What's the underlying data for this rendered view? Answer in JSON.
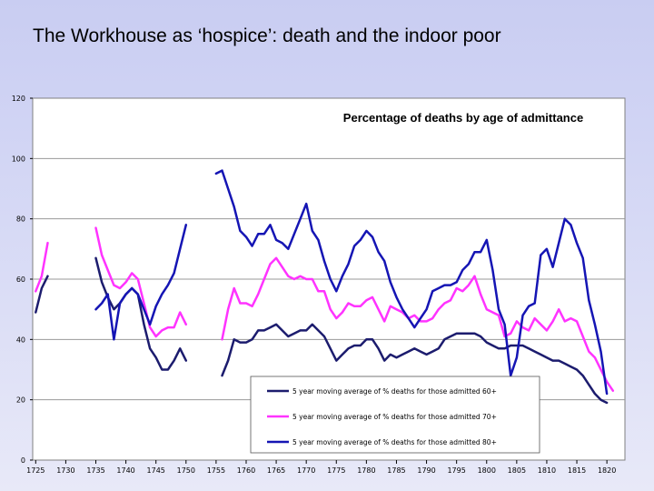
{
  "slide": {
    "title": "The Workhouse as ‘hospice’: death and the indoor poor"
  },
  "colors": {
    "series_60": "#1c1c6e",
    "series_70": "#ff33ff",
    "series_80": "#1515b4",
    "grid": "#9a9a9a",
    "plot_bg": "#ffffff"
  },
  "chart_data": {
    "type": "line",
    "title": "Percentage of deaths by age of admittance",
    "xlabel": "",
    "ylabel": "",
    "xlim": [
      1724.5,
      1823
    ],
    "ylim": [
      0,
      120
    ],
    "yticks": [
      "0",
      "20",
      "40",
      "60",
      "80",
      "100",
      "120"
    ],
    "xticks": [
      "1725",
      "1730",
      "1735",
      "1740",
      "1745",
      "1750",
      "1755",
      "1760",
      "1765",
      "1770",
      "1775",
      "1780",
      "1785",
      "1790",
      "1795",
      "1800",
      "1805",
      "1810",
      "1815",
      "1820"
    ],
    "grid": "horizontal",
    "legend_position": "bottom-right",
    "series": [
      {
        "name": "5 year moving average of % deaths for those admitted 60+",
        "segments": [
          [
            [
              1725,
              49
            ],
            [
              1726,
              57
            ],
            [
              1727,
              61
            ]
          ],
          [
            [
              1735,
              67
            ],
            [
              1736,
              59
            ],
            [
              1737,
              54
            ],
            [
              1738,
              50
            ],
            [
              1739,
              52
            ],
            [
              1740,
              55
            ],
            [
              1741,
              57
            ],
            [
              1742,
              55
            ],
            [
              1743,
              45
            ],
            [
              1744,
              37
            ],
            [
              1745,
              34
            ],
            [
              1746,
              30
            ],
            [
              1747,
              30
            ],
            [
              1748,
              33
            ],
            [
              1749,
              37
            ],
            [
              1750,
              33
            ]
          ],
          [
            [
              1756,
              28
            ],
            [
              1757,
              33
            ],
            [
              1758,
              40
            ],
            [
              1759,
              39
            ],
            [
              1760,
              39
            ],
            [
              1761,
              40
            ],
            [
              1762,
              43
            ],
            [
              1763,
              43
            ],
            [
              1764,
              44
            ],
            [
              1765,
              45
            ],
            [
              1766,
              43
            ],
            [
              1767,
              41
            ],
            [
              1768,
              42
            ],
            [
              1769,
              43
            ],
            [
              1770,
              43
            ],
            [
              1771,
              45
            ],
            [
              1772,
              43
            ],
            [
              1773,
              41
            ],
            [
              1774,
              37
            ],
            [
              1775,
              33
            ],
            [
              1776,
              35
            ],
            [
              1777,
              37
            ],
            [
              1778,
              38
            ],
            [
              1779,
              38
            ],
            [
              1780,
              40
            ],
            [
              1781,
              40
            ],
            [
              1782,
              37
            ],
            [
              1783,
              33
            ],
            [
              1784,
              35
            ],
            [
              1785,
              34
            ],
            [
              1786,
              35
            ],
            [
              1787,
              36
            ],
            [
              1788,
              37
            ],
            [
              1789,
              36
            ],
            [
              1790,
              35
            ],
            [
              1791,
              36
            ],
            [
              1792,
              37
            ],
            [
              1793,
              40
            ],
            [
              1794,
              41
            ],
            [
              1795,
              42
            ],
            [
              1796,
              42
            ],
            [
              1797,
              42
            ],
            [
              1798,
              42
            ],
            [
              1799,
              41
            ],
            [
              1800,
              39
            ],
            [
              1801,
              38
            ],
            [
              1802,
              37
            ],
            [
              1803,
              37
            ],
            [
              1804,
              38
            ],
            [
              1805,
              38
            ],
            [
              1806,
              38
            ],
            [
              1807,
              37
            ],
            [
              1808,
              36
            ],
            [
              1809,
              35
            ],
            [
              1810,
              34
            ],
            [
              1811,
              33
            ],
            [
              1812,
              33
            ],
            [
              1813,
              32
            ],
            [
              1814,
              31
            ],
            [
              1815,
              30
            ],
            [
              1816,
              28
            ],
            [
              1817,
              25
            ],
            [
              1818,
              22
            ],
            [
              1819,
              20
            ],
            [
              1820,
              19
            ]
          ]
        ]
      },
      {
        "name": "5 year moving average of % deaths for those admitted 70+",
        "segments": [
          [
            [
              1725,
              56
            ],
            [
              1726,
              61
            ],
            [
              1727,
              72
            ]
          ],
          [
            [
              1735,
              77
            ],
            [
              1736,
              68
            ],
            [
              1737,
              63
            ],
            [
              1738,
              58
            ],
            [
              1739,
              57
            ],
            [
              1740,
              59
            ],
            [
              1741,
              62
            ],
            [
              1742,
              60
            ],
            [
              1743,
              52
            ],
            [
              1744,
              44
            ],
            [
              1745,
              41
            ],
            [
              1746,
              43
            ],
            [
              1747,
              44
            ],
            [
              1748,
              44
            ],
            [
              1749,
              49
            ],
            [
              1750,
              45
            ]
          ],
          [
            [
              1756,
              40
            ],
            [
              1757,
              50
            ],
            [
              1758,
              57
            ],
            [
              1759,
              52
            ],
            [
              1760,
              52
            ],
            [
              1761,
              51
            ],
            [
              1762,
              55
            ],
            [
              1763,
              60
            ],
            [
              1764,
              65
            ],
            [
              1765,
              67
            ],
            [
              1766,
              64
            ],
            [
              1767,
              61
            ],
            [
              1768,
              60
            ],
            [
              1769,
              61
            ],
            [
              1770,
              60
            ],
            [
              1771,
              60
            ],
            [
              1772,
              56
            ],
            [
              1773,
              56
            ],
            [
              1774,
              50
            ],
            [
              1775,
              47
            ],
            [
              1776,
              49
            ],
            [
              1777,
              52
            ],
            [
              1778,
              51
            ],
            [
              1779,
              51
            ],
            [
              1780,
              53
            ],
            [
              1781,
              54
            ],
            [
              1782,
              50
            ],
            [
              1783,
              46
            ],
            [
              1784,
              51
            ],
            [
              1785,
              50
            ],
            [
              1786,
              49
            ],
            [
              1787,
              47
            ],
            [
              1788,
              48
            ],
            [
              1789,
              46
            ],
            [
              1790,
              46
            ],
            [
              1791,
              47
            ],
            [
              1792,
              50
            ],
            [
              1793,
              52
            ],
            [
              1794,
              53
            ],
            [
              1795,
              57
            ],
            [
              1796,
              56
            ],
            [
              1797,
              58
            ],
            [
              1798,
              61
            ],
            [
              1799,
              55
            ],
            [
              1800,
              50
            ],
            [
              1801,
              49
            ],
            [
              1802,
              48
            ],
            [
              1803,
              41
            ],
            [
              1804,
              42
            ],
            [
              1805,
              46
            ],
            [
              1806,
              44
            ],
            [
              1807,
              43
            ],
            [
              1808,
              47
            ],
            [
              1809,
              45
            ],
            [
              1810,
              43
            ],
            [
              1811,
              46
            ],
            [
              1812,
              50
            ],
            [
              1813,
              46
            ],
            [
              1814,
              47
            ],
            [
              1815,
              46
            ],
            [
              1816,
              41
            ],
            [
              1817,
              36
            ],
            [
              1818,
              34
            ],
            [
              1819,
              30
            ],
            [
              1820,
              26
            ],
            [
              1821,
              23
            ]
          ]
        ]
      },
      {
        "name": "5 year moving average of % deaths for those admitted 80+",
        "segments": [
          [
            [
              1735,
              50
            ],
            [
              1736,
              52
            ],
            [
              1737,
              55
            ],
            [
              1738,
              40
            ],
            [
              1739,
              52
            ],
            [
              1740,
              55
            ],
            [
              1741,
              57
            ],
            [
              1742,
              55
            ],
            [
              1743,
              50
            ],
            [
              1744,
              45
            ],
            [
              1745,
              51
            ],
            [
              1746,
              55
            ],
            [
              1747,
              58
            ],
            [
              1748,
              62
            ],
            [
              1749,
              70
            ],
            [
              1750,
              78
            ]
          ],
          [
            [
              1755,
              95
            ],
            [
              1756,
              96
            ],
            [
              1757,
              90
            ],
            [
              1758,
              84
            ],
            [
              1759,
              76
            ],
            [
              1760,
              74
            ],
            [
              1761,
              71
            ],
            [
              1762,
              75
            ],
            [
              1763,
              75
            ],
            [
              1764,
              78
            ],
            [
              1765,
              73
            ],
            [
              1766,
              72
            ],
            [
              1767,
              70
            ],
            [
              1768,
              75
            ],
            [
              1769,
              80
            ],
            [
              1770,
              85
            ],
            [
              1771,
              76
            ],
            [
              1772,
              73
            ],
            [
              1773,
              66
            ],
            [
              1774,
              60
            ],
            [
              1775,
              56
            ],
            [
              1776,
              61
            ],
            [
              1777,
              65
            ],
            [
              1778,
              71
            ],
            [
              1779,
              73
            ],
            [
              1780,
              76
            ],
            [
              1781,
              74
            ],
            [
              1782,
              69
            ],
            [
              1783,
              66
            ],
            [
              1784,
              59
            ],
            [
              1785,
              54
            ],
            [
              1786,
              50
            ],
            [
              1787,
              47
            ],
            [
              1788,
              44
            ],
            [
              1789,
              47
            ],
            [
              1790,
              50
            ],
            [
              1791,
              56
            ],
            [
              1792,
              57
            ],
            [
              1793,
              58
            ],
            [
              1794,
              58
            ],
            [
              1795,
              59
            ],
            [
              1796,
              63
            ],
            [
              1797,
              65
            ],
            [
              1798,
              69
            ],
            [
              1799,
              69
            ],
            [
              1800,
              73
            ],
            [
              1801,
              63
            ],
            [
              1802,
              50
            ],
            [
              1803,
              45
            ],
            [
              1804,
              28
            ],
            [
              1805,
              34
            ],
            [
              1806,
              48
            ],
            [
              1807,
              51
            ],
            [
              1808,
              52
            ],
            [
              1809,
              68
            ],
            [
              1810,
              70
            ],
            [
              1811,
              64
            ],
            [
              1812,
              72
            ],
            [
              1813,
              80
            ],
            [
              1814,
              78
            ],
            [
              1815,
              72
            ],
            [
              1816,
              67
            ],
            [
              1817,
              53
            ],
            [
              1818,
              45
            ],
            [
              1819,
              36
            ],
            [
              1820,
              22
            ]
          ]
        ]
      }
    ]
  }
}
